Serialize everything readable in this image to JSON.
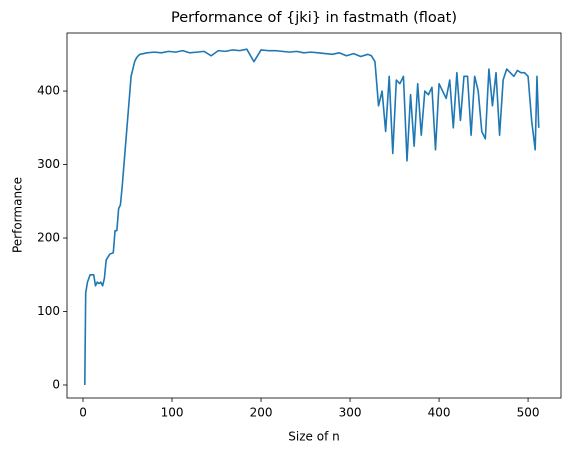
{
  "chart_data": {
    "type": "line",
    "title": "Performance of {jki} in fastmath (float)",
    "xlabel": "Size of n",
    "ylabel": "Performance",
    "x": [
      2,
      3,
      5,
      8,
      12,
      14,
      16,
      18,
      20,
      22,
      24,
      26,
      30,
      34,
      36,
      38,
      40,
      42,
      44,
      46,
      48,
      50,
      52,
      54,
      56,
      58,
      60,
      62,
      64,
      72,
      80,
      88,
      96,
      104,
      112,
      120,
      128,
      136,
      144,
      152,
      160,
      168,
      176,
      184,
      192,
      200,
      208,
      216,
      224,
      232,
      240,
      248,
      256,
      264,
      272,
      280,
      288,
      296,
      304,
      312,
      320,
      324,
      328,
      332,
      336,
      340,
      344,
      348,
      352,
      356,
      360,
      364,
      368,
      372,
      376,
      380,
      384,
      388,
      392,
      396,
      400,
      404,
      408,
      412,
      416,
      420,
      424,
      428,
      432,
      436,
      440,
      444,
      448,
      452,
      456,
      460,
      464,
      468,
      472,
      476,
      480,
      484,
      488,
      492,
      496,
      500,
      504,
      508,
      510,
      512
    ],
    "series": [
      {
        "name": "Performance",
        "color": "#1f77b4",
        "values": [
          0,
          125,
          140,
          150,
          150,
          135,
          140,
          138,
          140,
          135,
          145,
          170,
          178,
          180,
          210,
          210,
          240,
          245,
          270,
          300,
          330,
          360,
          390,
          420,
          430,
          440,
          445,
          448,
          450,
          452,
          453,
          452,
          454,
          453,
          455,
          452,
          453,
          454,
          448,
          455,
          454,
          456,
          455,
          457,
          440,
          456,
          455,
          455,
          454,
          453,
          454,
          452,
          453,
          452,
          451,
          450,
          452,
          448,
          451,
          447,
          450,
          448,
          440,
          380,
          400,
          345,
          420,
          315,
          415,
          410,
          420,
          305,
          395,
          325,
          410,
          340,
          400,
          395,
          405,
          320,
          410,
          400,
          390,
          415,
          350,
          425,
          360,
          420,
          420,
          340,
          420,
          400,
          345,
          335,
          430,
          380,
          425,
          340,
          415,
          430,
          425,
          420,
          428,
          425,
          425,
          420,
          360,
          320,
          420,
          350
        ]
      }
    ],
    "xlim": [
      -18,
      537
    ],
    "ylim": [
      -17.7,
      479
    ],
    "xticks": [
      0,
      100,
      200,
      300,
      400,
      500
    ],
    "yticks": [
      0,
      100,
      200,
      300,
      400
    ]
  }
}
